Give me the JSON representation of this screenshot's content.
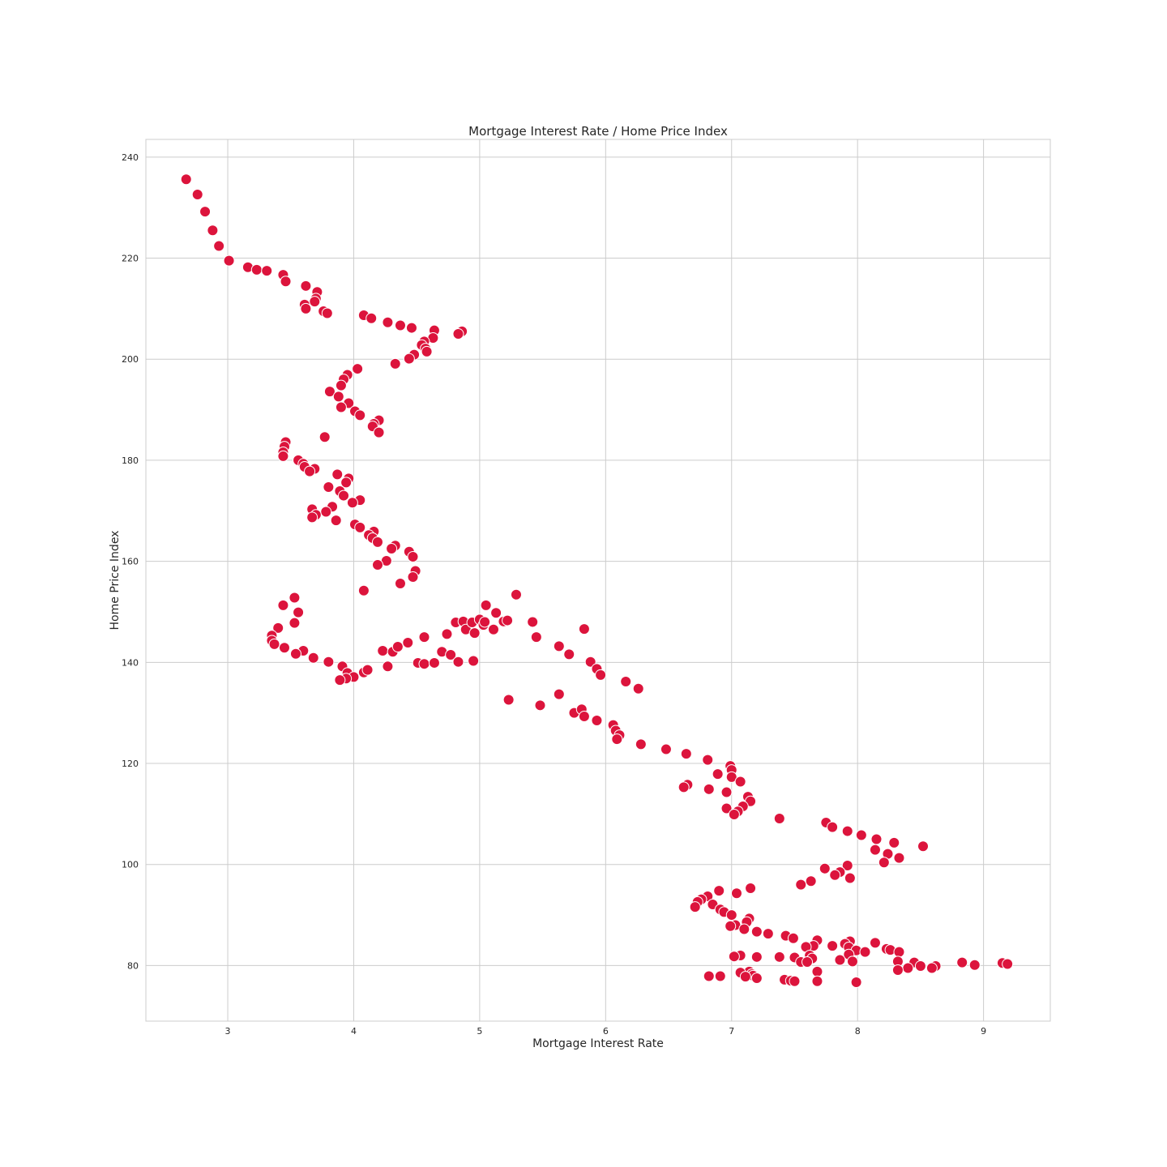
{
  "chart_data": {
    "type": "scatter",
    "title": "Mortgage Interest Rate / Home Price Index",
    "xlabel": "Mortgage Interest Rate",
    "ylabel": "Home Price Index",
    "xlim": [
      2.35,
      9.53
    ],
    "ylim": [
      69.0,
      243.5
    ],
    "xticks": [
      3,
      4,
      5,
      6,
      7,
      8,
      9
    ],
    "yticks": [
      80,
      100,
      120,
      140,
      160,
      180,
      200,
      220,
      240
    ],
    "grid": true,
    "marker_color": "#dc143c",
    "marker_edge_color": "#ffffff",
    "points": [
      [
        2.67,
        235.6
      ],
      [
        2.76,
        232.6
      ],
      [
        2.82,
        229.2
      ],
      [
        2.88,
        225.5
      ],
      [
        2.93,
        222.4
      ],
      [
        3.01,
        219.5
      ],
      [
        3.16,
        218.2
      ],
      [
        3.23,
        217.7
      ],
      [
        3.31,
        217.5
      ],
      [
        3.44,
        216.7
      ],
      [
        3.46,
        215.4
      ],
      [
        3.62,
        214.5
      ],
      [
        3.71,
        213.3
      ],
      [
        3.7,
        212.0
      ],
      [
        3.69,
        211.4
      ],
      [
        3.61,
        210.8
      ],
      [
        3.62,
        210.0
      ],
      [
        3.76,
        209.5
      ],
      [
        3.79,
        209.1
      ],
      [
        4.08,
        208.7
      ],
      [
        4.14,
        208.1
      ],
      [
        4.27,
        207.3
      ],
      [
        4.37,
        206.7
      ],
      [
        4.46,
        206.2
      ],
      [
        4.64,
        205.7
      ],
      [
        4.86,
        205.5
      ],
      [
        4.83,
        205.0
      ],
      [
        4.63,
        204.2
      ],
      [
        4.56,
        203.5
      ],
      [
        4.54,
        202.8
      ],
      [
        4.57,
        202.1
      ],
      [
        4.58,
        201.5
      ],
      [
        4.48,
        200.9
      ],
      [
        4.44,
        200.1
      ],
      [
        4.33,
        199.1
      ],
      [
        4.03,
        198.1
      ],
      [
        3.95,
        196.9
      ],
      [
        3.92,
        196.0
      ],
      [
        3.9,
        194.8
      ],
      [
        3.81,
        193.6
      ],
      [
        3.88,
        192.6
      ],
      [
        3.96,
        191.3
      ],
      [
        3.9,
        190.5
      ],
      [
        4.01,
        189.7
      ],
      [
        4.05,
        188.9
      ],
      [
        4.2,
        187.9
      ],
      [
        4.16,
        187.2
      ],
      [
        4.15,
        186.7
      ],
      [
        4.2,
        185.5
      ],
      [
        3.77,
        184.6
      ],
      [
        3.46,
        183.6
      ],
      [
        3.45,
        182.7
      ],
      [
        3.44,
        181.6
      ],
      [
        3.44,
        180.8
      ],
      [
        3.56,
        180.0
      ],
      [
        3.6,
        179.3
      ],
      [
        3.61,
        178.7
      ],
      [
        3.69,
        178.3
      ],
      [
        3.65,
        177.8
      ],
      [
        3.87,
        177.2
      ],
      [
        3.96,
        176.4
      ],
      [
        3.94,
        175.6
      ],
      [
        3.8,
        174.7
      ],
      [
        3.89,
        173.9
      ],
      [
        3.92,
        173.0
      ],
      [
        4.05,
        172.1
      ],
      [
        3.99,
        171.6
      ],
      [
        3.83,
        170.8
      ],
      [
        3.67,
        170.3
      ],
      [
        3.78,
        169.8
      ],
      [
        3.7,
        169.2
      ],
      [
        3.67,
        168.7
      ],
      [
        3.86,
        168.1
      ],
      [
        4.01,
        167.3
      ],
      [
        4.05,
        166.7
      ],
      [
        4.16,
        165.9
      ],
      [
        4.12,
        165.2
      ],
      [
        4.15,
        164.6
      ],
      [
        4.19,
        163.8
      ],
      [
        4.33,
        163.1
      ],
      [
        4.3,
        162.5
      ],
      [
        4.44,
        161.9
      ],
      [
        4.47,
        160.9
      ],
      [
        4.26,
        160.1
      ],
      [
        4.19,
        159.3
      ],
      [
        4.49,
        158.1
      ],
      [
        4.47,
        156.9
      ],
      [
        4.37,
        155.6
      ],
      [
        4.08,
        154.2
      ],
      [
        3.53,
        152.8
      ],
      [
        3.44,
        151.3
      ],
      [
        3.56,
        149.9
      ],
      [
        3.53,
        147.8
      ],
      [
        3.4,
        146.8
      ],
      [
        3.35,
        145.3
      ],
      [
        3.35,
        144.3
      ],
      [
        3.37,
        143.6
      ],
      [
        3.45,
        142.9
      ],
      [
        3.6,
        142.3
      ],
      [
        3.54,
        141.7
      ],
      [
        3.68,
        140.9
      ],
      [
        3.8,
        140.1
      ],
      [
        3.91,
        139.2
      ],
      [
        3.95,
        137.9
      ],
      [
        4.0,
        137.1
      ],
      [
        3.94,
        136.8
      ],
      [
        3.89,
        136.5
      ],
      [
        4.08,
        138.0
      ],
      [
        4.11,
        138.5
      ],
      [
        4.27,
        139.2
      ],
      [
        4.23,
        142.3
      ],
      [
        4.31,
        142.1
      ],
      [
        4.35,
        143.1
      ],
      [
        4.43,
        143.9
      ],
      [
        4.51,
        139.9
      ],
      [
        4.56,
        139.7
      ],
      [
        4.64,
        139.9
      ],
      [
        4.56,
        145.0
      ],
      [
        4.7,
        142.1
      ],
      [
        4.77,
        141.5
      ],
      [
        4.83,
        140.1
      ],
      [
        4.74,
        145.6
      ],
      [
        4.81,
        147.9
      ],
      [
        4.87,
        148.1
      ],
      [
        4.89,
        146.5
      ],
      [
        4.94,
        147.9
      ],
      [
        4.96,
        145.8
      ],
      [
        5.0,
        148.5
      ],
      [
        5.03,
        147.4
      ],
      [
        5.04,
        148.0
      ],
      [
        5.05,
        151.3
      ],
      [
        5.11,
        146.5
      ],
      [
        5.13,
        149.8
      ],
      [
        5.19,
        148.1
      ],
      [
        5.22,
        148.3
      ],
      [
        4.95,
        140.3
      ],
      [
        5.29,
        153.4
      ],
      [
        5.23,
        132.6
      ],
      [
        5.48,
        131.5
      ],
      [
        5.42,
        148.0
      ],
      [
        5.45,
        145.0
      ],
      [
        5.63,
        143.2
      ],
      [
        5.63,
        133.7
      ],
      [
        5.71,
        141.6
      ],
      [
        5.75,
        130.0
      ],
      [
        5.81,
        130.7
      ],
      [
        5.83,
        129.3
      ],
      [
        5.83,
        146.6
      ],
      [
        5.88,
        140.1
      ],
      [
        5.93,
        128.5
      ],
      [
        5.93,
        138.7
      ],
      [
        5.96,
        137.5
      ],
      [
        6.06,
        127.6
      ],
      [
        6.08,
        126.5
      ],
      [
        6.11,
        125.6
      ],
      [
        6.09,
        124.8
      ],
      [
        6.16,
        136.2
      ],
      [
        6.26,
        134.8
      ],
      [
        6.28,
        123.8
      ],
      [
        6.48,
        122.8
      ],
      [
        6.64,
        121.9
      ],
      [
        6.81,
        120.7
      ],
      [
        6.99,
        119.5
      ],
      [
        7.0,
        118.7
      ],
      [
        6.89,
        117.9
      ],
      [
        7.0,
        117.3
      ],
      [
        7.07,
        116.4
      ],
      [
        6.65,
        115.8
      ],
      [
        6.62,
        115.3
      ],
      [
        6.82,
        114.9
      ],
      [
        6.96,
        114.3
      ],
      [
        7.13,
        113.4
      ],
      [
        7.15,
        112.5
      ],
      [
        7.09,
        111.5
      ],
      [
        6.96,
        111.1
      ],
      [
        7.05,
        110.5
      ],
      [
        7.02,
        109.9
      ],
      [
        7.38,
        109.1
      ],
      [
        7.75,
        108.3
      ],
      [
        7.8,
        107.4
      ],
      [
        7.92,
        106.6
      ],
      [
        8.03,
        105.8
      ],
      [
        8.15,
        105.0
      ],
      [
        8.29,
        104.3
      ],
      [
        8.52,
        103.6
      ],
      [
        8.14,
        102.9
      ],
      [
        8.24,
        102.1
      ],
      [
        8.33,
        101.3
      ],
      [
        8.21,
        100.4
      ],
      [
        7.92,
        99.8
      ],
      [
        7.74,
        99.2
      ],
      [
        7.86,
        98.5
      ],
      [
        7.82,
        97.9
      ],
      [
        7.94,
        97.3
      ],
      [
        7.63,
        96.7
      ],
      [
        7.55,
        96.0
      ],
      [
        7.15,
        95.3
      ],
      [
        6.9,
        94.8
      ],
      [
        7.04,
        94.3
      ],
      [
        6.81,
        93.7
      ],
      [
        6.76,
        93.1
      ],
      [
        6.73,
        92.6
      ],
      [
        6.85,
        92.1
      ],
      [
        6.71,
        91.6
      ],
      [
        6.91,
        91.1
      ],
      [
        6.94,
        90.6
      ],
      [
        7.0,
        90.0
      ],
      [
        7.14,
        89.3
      ],
      [
        7.12,
        88.6
      ],
      [
        7.03,
        88.0
      ],
      [
        6.99,
        87.8
      ],
      [
        7.1,
        87.2
      ],
      [
        7.2,
        86.7
      ],
      [
        7.29,
        86.3
      ],
      [
        7.43,
        85.9
      ],
      [
        7.49,
        85.4
      ],
      [
        7.68,
        85.0
      ],
      [
        7.94,
        84.8
      ],
      [
        8.14,
        84.5
      ],
      [
        7.9,
        84.3
      ],
      [
        7.8,
        83.9
      ],
      [
        7.65,
        83.9
      ],
      [
        7.59,
        83.7
      ],
      [
        7.93,
        83.6
      ],
      [
        8.23,
        83.3
      ],
      [
        8.26,
        83.1
      ],
      [
        7.99,
        83.0
      ],
      [
        8.06,
        82.7
      ],
      [
        8.33,
        82.7
      ],
      [
        7.93,
        82.2
      ],
      [
        7.62,
        82.0
      ],
      [
        7.07,
        82.0
      ],
      [
        7.02,
        81.8
      ],
      [
        7.2,
        81.7
      ],
      [
        7.38,
        81.7
      ],
      [
        7.5,
        81.6
      ],
      [
        7.64,
        81.4
      ],
      [
        7.86,
        81.1
      ],
      [
        7.96,
        80.8
      ],
      [
        8.32,
        80.8
      ],
      [
        7.55,
        80.7
      ],
      [
        7.6,
        80.7
      ],
      [
        8.45,
        80.6
      ],
      [
        8.83,
        80.6
      ],
      [
        9.15,
        80.5
      ],
      [
        9.19,
        80.3
      ],
      [
        8.93,
        80.1
      ],
      [
        8.5,
        79.9
      ],
      [
        8.62,
        79.9
      ],
      [
        8.4,
        79.5
      ],
      [
        8.59,
        79.5
      ],
      [
        8.32,
        79.1
      ],
      [
        7.68,
        78.8
      ],
      [
        7.14,
        78.8
      ],
      [
        7.07,
        78.6
      ],
      [
        7.16,
        78.3
      ],
      [
        7.17,
        78.0
      ],
      [
        7.11,
        77.8
      ],
      [
        6.82,
        77.9
      ],
      [
        6.91,
        77.9
      ],
      [
        7.2,
        77.5
      ],
      [
        7.42,
        77.2
      ],
      [
        7.47,
        77.0
      ],
      [
        7.5,
        76.9
      ],
      [
        7.68,
        76.9
      ],
      [
        7.99,
        76.7
      ]
    ]
  }
}
